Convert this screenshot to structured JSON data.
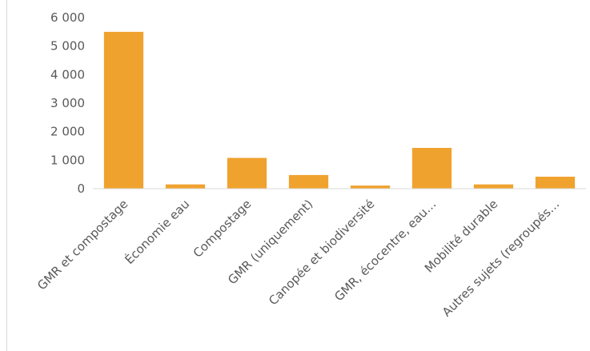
{
  "chart_data": {
    "type": "bar",
    "categories": [
      "GMR et compostage",
      "Économie eau",
      "Compostage",
      "GMR (uniquement)",
      "Canopée et biodiversité",
      "GMR, écocentre, eau…",
      "Mobilité durable",
      "Autres sujets (regroupés…"
    ],
    "values": [
      5500,
      150,
      1080,
      480,
      110,
      1430,
      150,
      420
    ],
    "ylim": [
      0,
      6000
    ],
    "yticks": [
      0,
      1000,
      2000,
      3000,
      4000,
      5000,
      6000
    ],
    "ytick_labels": [
      "0",
      "1 000",
      "2 000",
      "3 000",
      "4 000",
      "5 000",
      "6 000"
    ],
    "grid": false,
    "colors": {
      "bar": "#F0A22E",
      "axis": "#D9D9D9",
      "text": "#595959"
    }
  }
}
